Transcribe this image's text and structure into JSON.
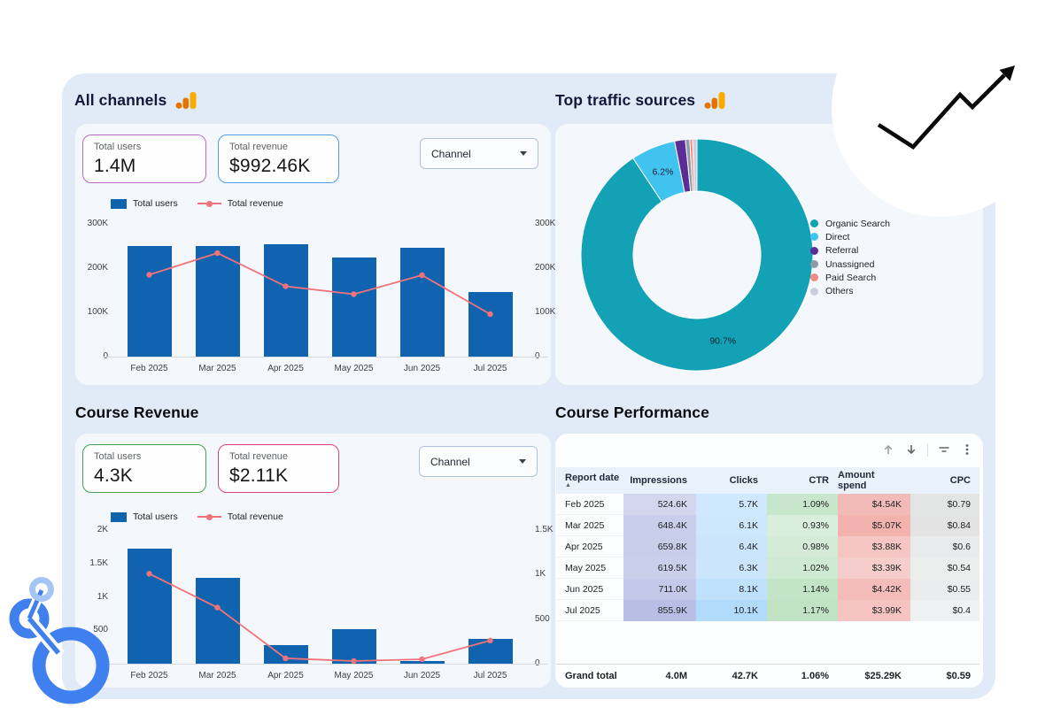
{
  "sections": {
    "all_channels": {
      "title": "All channels"
    },
    "traffic": {
      "title": "Top traffic sources"
    },
    "course_revenue": {
      "title": "Course Revenue"
    },
    "course_performance": {
      "title": "Course Performance"
    }
  },
  "scorecards": {
    "all_channels": [
      {
        "label": "Total users",
        "value": "1.4M",
        "border": "#BA69C8"
      },
      {
        "label": "Total revenue",
        "value": "$992.46K",
        "border": "#4D9EE5"
      }
    ],
    "course_revenue": [
      {
        "label": "Total users",
        "value": "4.3K",
        "border": "#46A04E"
      },
      {
        "label": "Total revenue",
        "value": "$2.11K",
        "border": "#D6467C"
      }
    ]
  },
  "filters": {
    "channel_label": "Channel"
  },
  "icons": {
    "analytics": "google-analytics-bars",
    "trend": "trending-up-arrow",
    "logo": "looker-studio-logo"
  },
  "colors": {
    "bar_blue": "#1063AE",
    "line_salmon": "#F0737B",
    "card_bg": "#E1EBF7",
    "panel_bg": "#F4F8FC",
    "ga_orange_dark": "#E37400",
    "ga_orange_light": "#F9AB00",
    "logo_blue": "#3F7FEE",
    "logo_blue_light": "#A6C5F7"
  },
  "chart_data": [
    {
      "id": "all_channels_combo",
      "type": "bar",
      "title": "All channels",
      "categories": [
        "Feb 2025",
        "Mar 2025",
        "Apr 2025",
        "May 2025",
        "Jun 2025",
        "Jul 2025"
      ],
      "series": [
        {
          "name": "Total users",
          "type": "bar",
          "axis": "left",
          "color": "#1063AE",
          "values": [
            250000,
            250000,
            254000,
            224000,
            246000,
            147000
          ]
        },
        {
          "name": "Total revenue",
          "type": "line",
          "axis": "right",
          "color": "#F0737B",
          "values": [
            185000,
            234000,
            159000,
            141000,
            184000,
            96000
          ]
        }
      ],
      "left_axis": {
        "max": 300000,
        "ticks": [
          "300K",
          "200K",
          "100K",
          "0"
        ]
      },
      "right_axis": {
        "max": 300000,
        "ticks": [
          "300K",
          "200K",
          "100K",
          "0"
        ]
      },
      "grid": false,
      "legend_position": "top-left"
    },
    {
      "id": "traffic_donut",
      "type": "pie",
      "title": "Top traffic sources",
      "slices": [
        {
          "label": "Organic Search",
          "pct": 90.7,
          "color": "#12A1B5",
          "show_label": true,
          "label_text": "90.7%"
        },
        {
          "label": "Direct",
          "pct": 6.2,
          "color": "#41C3F0",
          "show_label": true,
          "label_text": "6.2%"
        },
        {
          "label": "Referral",
          "pct": 1.5,
          "color": "#5C2D96",
          "show_label": false,
          "label_text": ""
        },
        {
          "label": "Unassigned",
          "pct": 0.6,
          "color": "#8E9BAA",
          "show_label": false,
          "label_text": ""
        },
        {
          "label": "Paid Search",
          "pct": 0.4,
          "color": "#F28B82",
          "show_label": false,
          "label_text": ""
        },
        {
          "label": "Others",
          "pct": 0.6,
          "color": "#C9CEDA",
          "show_label": false,
          "label_text": ""
        }
      ],
      "donut": true,
      "legend_position": "right"
    },
    {
      "id": "course_revenue_combo",
      "type": "bar",
      "title": "Course Revenue",
      "categories": [
        "Feb 2025",
        "Mar 2025",
        "Apr 2025",
        "May 2025",
        "Jun 2025",
        "Jul 2025"
      ],
      "series": [
        {
          "name": "Total users",
          "type": "bar",
          "axis": "left",
          "color": "#1063AE",
          "values": [
            1720,
            1290,
            280,
            520,
            45,
            370
          ]
        },
        {
          "name": "Total revenue",
          "type": "line",
          "axis": "right",
          "color": "#F0737B",
          "values": [
            1010,
            630,
            60,
            30,
            50,
            260
          ]
        }
      ],
      "left_axis": {
        "max": 2000,
        "ticks": [
          "2K",
          "1.5K",
          "1K",
          "500",
          "0"
        ]
      },
      "right_axis": {
        "max": 1500,
        "ticks": [
          "1.5K",
          "1K",
          "500",
          "0"
        ]
      },
      "grid": false,
      "legend_position": "top-left"
    },
    {
      "id": "course_performance_table",
      "type": "table",
      "title": "Course Performance",
      "columns": [
        {
          "label": "Report date",
          "align": "left",
          "sorted": "asc",
          "heat": null
        },
        {
          "label": "Impressions",
          "align": "right",
          "heat": "#5F6EC2"
        },
        {
          "label": "Clicks",
          "align": "right",
          "heat": "#42A5F5"
        },
        {
          "label": "CTR",
          "align": "right",
          "heat": "#4CAF50"
        },
        {
          "label": "Amount spend",
          "align": "right",
          "heat": "#E66054"
        },
        {
          "label": "CPC",
          "align": "right",
          "heat": "#82827D"
        }
      ],
      "rows": [
        [
          "Feb 2025",
          "524.6K",
          "5.7K",
          "1.09%",
          "$4.54K",
          "$0.79"
        ],
        [
          "Mar 2025",
          "648.4K",
          "6.1K",
          "0.93%",
          "$5.07K",
          "$0.84"
        ],
        [
          "Apr 2025",
          "659.8K",
          "6.4K",
          "0.98%",
          "$3.88K",
          "$0.6"
        ],
        [
          "May 2025",
          "619.5K",
          "6.3K",
          "1.02%",
          "$3.39K",
          "$0.54"
        ],
        [
          "Jun 2025",
          "711.0K",
          "8.1K",
          "1.14%",
          "$4.42K",
          "$0.55"
        ],
        [
          "Jul 2025",
          "855.9K",
          "10.1K",
          "1.17%",
          "$3.99K",
          "$0.4"
        ]
      ],
      "numeric": [
        [
          524.6,
          5.7,
          1.09,
          4.54,
          0.79
        ],
        [
          648.4,
          6.1,
          0.93,
          5.07,
          0.84
        ],
        [
          659.8,
          6.4,
          0.98,
          3.88,
          0.6
        ],
        [
          619.5,
          6.3,
          1.02,
          3.39,
          0.54
        ],
        [
          711.0,
          8.1,
          1.14,
          4.42,
          0.55
        ],
        [
          855.9,
          10.1,
          1.17,
          3.99,
          0.4
        ]
      ],
      "grand_total": [
        "Grand total",
        "4.0M",
        "42.7K",
        "1.06%",
        "$25.29K",
        "$0.59"
      ]
    }
  ]
}
